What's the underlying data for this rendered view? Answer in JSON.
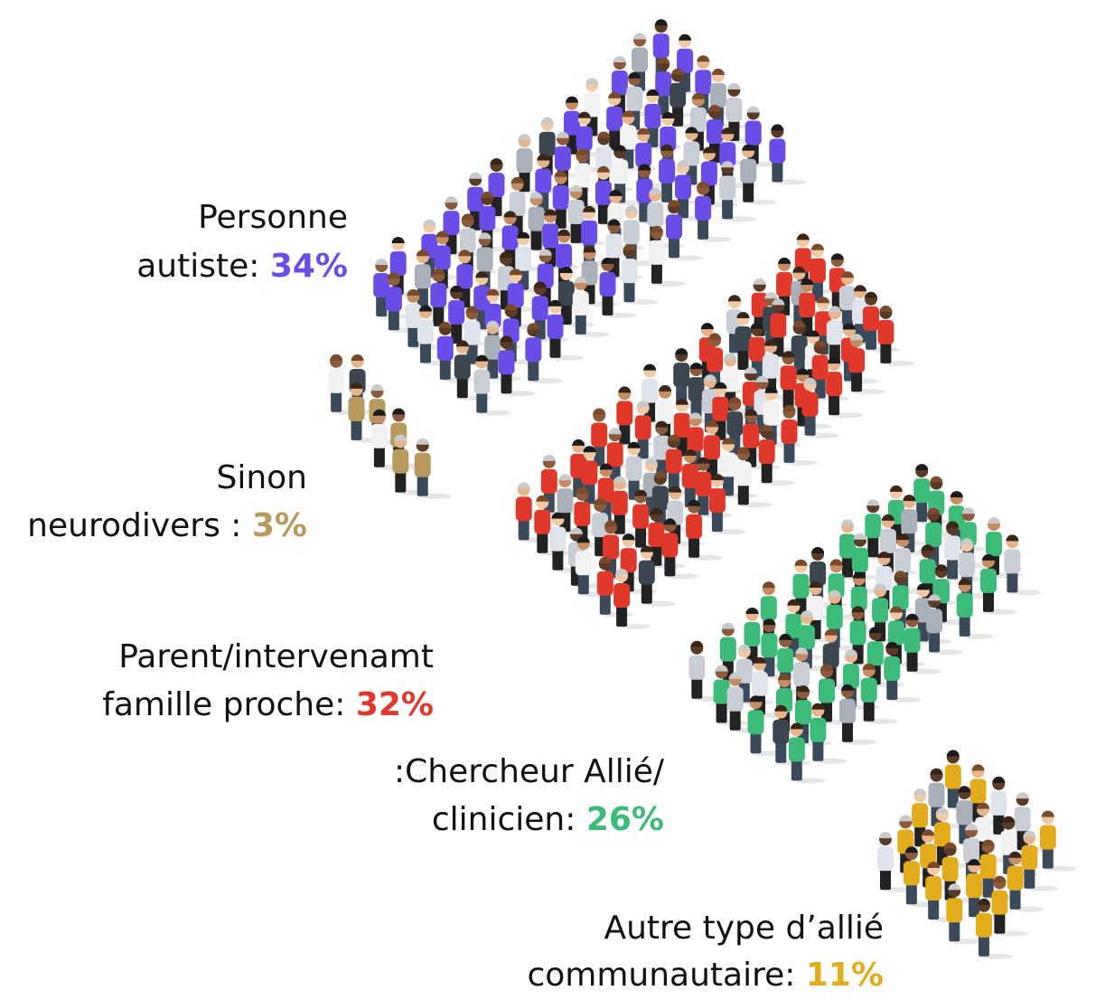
{
  "groups": [
    {
      "line1": "Personne",
      "line2": "autiste:",
      "percent": "34%",
      "color": "#6a4de6"
    },
    {
      "line1": "Sinon",
      "line2": "neurodivers :",
      "percent": "3%",
      "color": "#b8995e"
    },
    {
      "line1": "Parent/intervenamt",
      "line2": "famille proche:",
      "percent": "32%",
      "color": "#e0392b"
    },
    {
      "line1": ":Chercheur Allié/",
      "line2": "clinicien:",
      "percent": "26%",
      "color": "#3dbb78"
    },
    {
      "line1": "Autre type d’allié",
      "line2": "communautaire:",
      "percent": "11%",
      "color": "#e2ac1c"
    }
  ]
}
